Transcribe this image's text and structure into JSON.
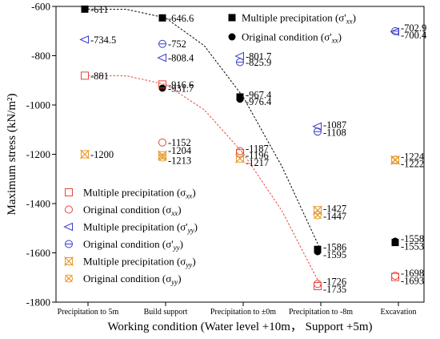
{
  "chart_data": {
    "type": "scatter",
    "categories": [
      "Precipitation to 5m",
      "Build support",
      "Precipitation to ±0m",
      "Precipitation to -8m",
      "Excavation"
    ],
    "xlabel": "Working condition (Water level +10m， Support +5m)",
    "ylabel": "Maximum stress (kN/m²)",
    "ylim": [
      -1800,
      -600
    ],
    "yticks": [
      -600,
      -800,
      -1000,
      -1200,
      -1400,
      -1600,
      -1800
    ],
    "grid": false,
    "series": [
      {
        "name": "Multiple precipitation (σ'xx)",
        "label_main": "Multiple precipitation (σ'",
        "label_sub": "xx",
        "label_end": ")",
        "marker": "filled-square",
        "color": "#000000",
        "values": [
          -611,
          -646.6,
          -967.4,
          -1586,
          -1558
        ]
      },
      {
        "name": "Original condition (σ'xx)",
        "label_main": "Original condition (σ'",
        "label_sub": "xx",
        "label_end": ")",
        "marker": "filled-circle",
        "color": "#000000",
        "values": [
          null,
          -931.7,
          -976.4,
          -1595,
          -1553
        ]
      },
      {
        "name": "Multiple precipitation (σxx)",
        "label_main": "Multiple precipitation (σ",
        "label_sub": "xx",
        "label_end": ")",
        "marker": "open-square",
        "color": "#e8443a",
        "values": [
          -881,
          -916.6,
          -1196,
          -1735,
          -1698
        ]
      },
      {
        "name": "Original condition (σxx)",
        "label_main": "Original condition (σ",
        "label_sub": "xx",
        "label_end": ")",
        "marker": "open-circle",
        "color": "#e8443a",
        "values": [
          null,
          -1152,
          -1187,
          -1726,
          -1693
        ]
      },
      {
        "name": "Multiple precipitation (σ'yy)",
        "label_main": "Multiple precipitation (σ'",
        "label_sub": "yy",
        "label_end": ")",
        "marker": "left-triangle",
        "color": "#3c3cc8",
        "values": [
          -734.5,
          -808.4,
          -801.7,
          -1087,
          -702.9
        ]
      },
      {
        "name": "Original condition (σ'yy)",
        "label_main": "Original condition (σ'",
        "label_sub": "yy",
        "label_end": ")",
        "marker": "circle-minus",
        "color": "#3c3cc8",
        "values": [
          null,
          -752,
          -825.9,
          -1108,
          -700.4
        ]
      },
      {
        "name": "Multiple precipitation (σyy)",
        "label_main": "Multiple precipitation (σ",
        "label_sub": "yy",
        "label_end": ")",
        "marker": "x-square",
        "color": "#e89a2c",
        "values": [
          -1200,
          -1204,
          -1217,
          -1427,
          -1224
        ]
      },
      {
        "name": "Original condition (σyy)",
        "label_main": "Original condition (σ",
        "label_sub": "yy",
        "label_end": ")",
        "marker": "x-circle",
        "color": "#e89a2c",
        "values": [
          null,
          -1213,
          null,
          -1447,
          -1222
        ]
      }
    ],
    "labels": [
      {
        "text": "-611",
        "cat": 0,
        "y": -611
      },
      {
        "text": "-734.5",
        "cat": 0,
        "y": -734.5
      },
      {
        "text": "-881",
        "cat": 0,
        "y": -881
      },
      {
        "text": "-1200",
        "cat": 0,
        "y": -1200
      },
      {
        "text": "-646.6",
        "cat": 1,
        "y": -646.6
      },
      {
        "text": "-752",
        "cat": 1,
        "y": -752
      },
      {
        "text": "-808.4",
        "cat": 1,
        "y": -808.4
      },
      {
        "text": "-916.6",
        "cat": 1,
        "y": -916.6
      },
      {
        "text": "-931.7",
        "cat": 1,
        "y": -931.7
      },
      {
        "text": "-1152",
        "cat": 1,
        "y": -1152
      },
      {
        "text": "-1204",
        "cat": 1,
        "y": -1184
      },
      {
        "text": "-1213",
        "cat": 1,
        "y": -1225
      },
      {
        "text": "-801.7",
        "cat": 2,
        "y": -801.7
      },
      {
        "text": "-825.9",
        "cat": 2,
        "y": -825.9
      },
      {
        "text": "-967.4",
        "cat": 2,
        "y": -958
      },
      {
        "text": "-976.4",
        "cat": 2,
        "y": -986
      },
      {
        "text": "-1187",
        "cat": 2,
        "y": -1176
      },
      {
        "text": "-1196",
        "cat": 2,
        "y": -1204
      },
      {
        "text": "-1217",
        "cat": 2,
        "y": -1232
      },
      {
        "text": "-1087",
        "cat": 3,
        "y": -1080
      },
      {
        "text": "-1108",
        "cat": 3,
        "y": -1110
      },
      {
        "text": "-1427",
        "cat": 3,
        "y": -1420
      },
      {
        "text": "-1447",
        "cat": 3,
        "y": -1450
      },
      {
        "text": "-1586",
        "cat": 3,
        "y": -1576
      },
      {
        "text": "-1595",
        "cat": 3,
        "y": -1606
      },
      {
        "text": "-1726",
        "cat": 3,
        "y": -1716
      },
      {
        "text": "-1735",
        "cat": 3,
        "y": -1746
      },
      {
        "text": "-702.9",
        "cat": 4,
        "y": -686
      },
      {
        "text": "-700.4",
        "cat": 4,
        "y": -716
      },
      {
        "text": "-1224",
        "cat": 4,
        "y": -1208
      },
      {
        "text": "-1222",
        "cat": 4,
        "y": -1238
      },
      {
        "text": "-1558",
        "cat": 4,
        "y": -1542
      },
      {
        "text": "-1553",
        "cat": 4,
        "y": -1572
      },
      {
        "text": "-1698",
        "cat": 4,
        "y": -1682
      },
      {
        "text": "-1693",
        "cat": 4,
        "y": -1712
      }
    ],
    "trend_lines": [
      {
        "series": "Multiple precipitation (σ'xx)",
        "style": "dashed",
        "color": "#000000",
        "points": [
          [
            0,
            -611
          ],
          [
            0.5,
            -612
          ],
          [
            1,
            -646.6
          ],
          [
            1.5,
            -760
          ],
          [
            2,
            -967.4
          ],
          [
            2.5,
            -1250
          ],
          [
            3,
            -1590
          ]
        ]
      },
      {
        "series": "Multiple precipitation (σxx)",
        "style": "dashed",
        "color": "#e8443a",
        "points": [
          [
            0,
            -881
          ],
          [
            0.5,
            -882
          ],
          [
            1,
            -916.6
          ],
          [
            1.5,
            -1020
          ],
          [
            2,
            -1196
          ],
          [
            2.5,
            -1430
          ],
          [
            3,
            -1735
          ]
        ]
      }
    ]
  }
}
